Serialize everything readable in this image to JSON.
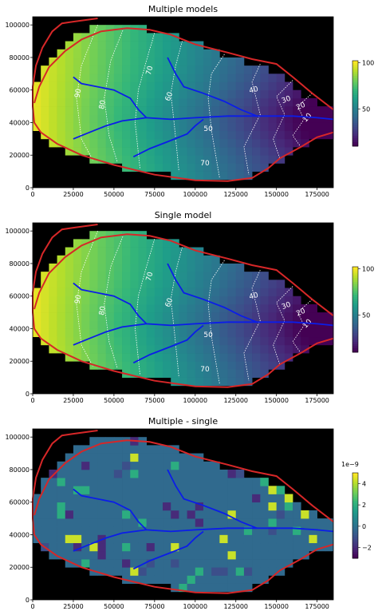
{
  "chart_data": [
    {
      "type": "heatmap",
      "title": "Multiple models",
      "xlim": [
        0,
        185000
      ],
      "ylim": [
        0,
        105000
      ],
      "xticks": [
        "0",
        "25000",
        "50000",
        "75000",
        "100000",
        "125000",
        "150000",
        "175000"
      ],
      "yticks": [
        "0",
        "20000",
        "40000",
        "60000",
        "80000",
        "100000"
      ],
      "colorbar_ticks": [
        "50",
        "100"
      ],
      "contour_labels": [
        "10",
        "20",
        "30",
        "40",
        "50",
        "60",
        "70",
        "70",
        "80",
        "90"
      ],
      "colormap": "viridis",
      "boundary_color": "#d62728",
      "river_color": "#0b1de8"
    },
    {
      "type": "heatmap",
      "title": "Single model",
      "xlim": [
        0,
        185000
      ],
      "ylim": [
        0,
        105000
      ],
      "xticks": [
        "0",
        "25000",
        "50000",
        "75000",
        "100000",
        "125000",
        "150000",
        "175000"
      ],
      "yticks": [
        "0",
        "20000",
        "40000",
        "60000",
        "80000",
        "100000"
      ],
      "colorbar_ticks": [
        "50",
        "100"
      ],
      "contour_labels": [
        "10",
        "20",
        "30",
        "40",
        "50",
        "60",
        "70",
        "70",
        "80",
        "90"
      ],
      "colormap": "viridis",
      "boundary_color": "#d62728",
      "river_color": "#0b1de8"
    },
    {
      "type": "heatmap",
      "title": "Multiple - single",
      "xlim": [
        0,
        185000
      ],
      "ylim": [
        0,
        105000
      ],
      "xticks": [
        "0",
        "25000",
        "50000",
        "75000",
        "100000",
        "125000",
        "150000",
        "175000"
      ],
      "yticks": [
        "0",
        "20000",
        "40000",
        "60000",
        "80000",
        "100000"
      ],
      "colorbar_ticks": [
        "4",
        "2",
        "0",
        "−2"
      ],
      "colorbar_scale": "1e−9",
      "colormap": "viridis",
      "boundary_color": "#d62728",
      "river_color": "#0b1de8"
    }
  ]
}
